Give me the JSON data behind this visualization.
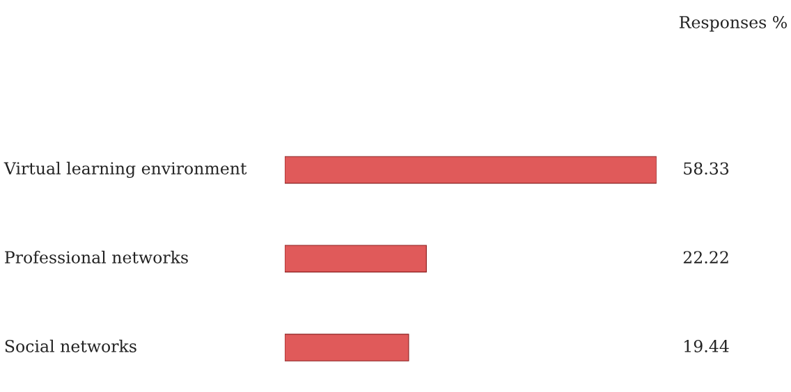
{
  "chart_data": {
    "type": "bar",
    "orientation": "horizontal",
    "title": "Responses %",
    "categories": [
      "Virtual learning environment",
      "Professional networks",
      "Social networks"
    ],
    "values": [
      58.33,
      22.22,
      19.44
    ],
    "color": "#e05a5a",
    "data_labels": true
  }
}
